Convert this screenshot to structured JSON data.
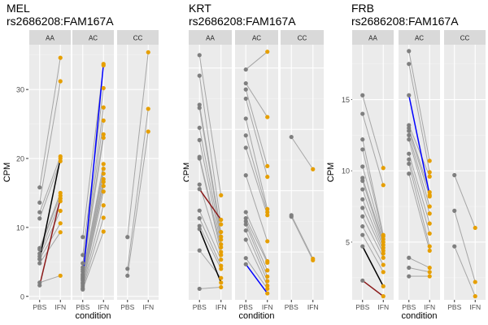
{
  "figure": {
    "xlabel": "condition",
    "ylabel": "CPM",
    "condition_labels": [
      "PBS",
      "IFN"
    ]
  },
  "colors": {
    "panel_bg": "#ebebeb",
    "strip_bg": "#d9d9d9",
    "grid_major": "#ffffff",
    "grid_minor": "#f4f4f4",
    "pbs_point": "#7f7f7f",
    "ifn_point": "#e69f00",
    "pair_line": "#a6a6a6",
    "highlight_black": "#000000",
    "highlight_red": "#8b1a1a",
    "highlight_blue": "#0000ff",
    "text": "#000000",
    "tick_text": "#4d4d4d"
  },
  "chart_data": [
    {
      "type": "scatter",
      "title": "MEL",
      "subtitle": "rs2686208:FAM167A",
      "xlabel": "condition",
      "ylabel": "CPM",
      "ylim": [
        -0.5,
        36.5
      ],
      "yticks": [
        0,
        10,
        20,
        30
      ],
      "facets": [
        {
          "genotype": "AA",
          "pairs": [
            [
              15.8,
              34.6
            ],
            [
              13.6,
              31.2
            ],
            [
              12.2,
              20.3
            ],
            [
              11.3,
              19.6
            ],
            [
              7.0,
              15.0
            ],
            [
              6.8,
              14.6
            ],
            [
              6.2,
              13.8
            ],
            [
              5.8,
              12.4
            ],
            [
              5.4,
              10.6
            ],
            [
              4.8,
              9.3
            ],
            [
              2.0,
              3.0
            ]
          ],
          "highlight": [
            {
              "color": "black",
              "pbs": 5.4,
              "ifn": 20.0
            },
            {
              "color": "red",
              "pbs": 1.6,
              "ifn": 14.2
            }
          ]
        },
        {
          "genotype": "AC",
          "pairs": [
            [
              8.6,
              33.5
            ],
            [
              6.0,
              30.2
            ],
            [
              4.8,
              27.4
            ],
            [
              4.2,
              25.5
            ],
            [
              3.9,
              23.5
            ],
            [
              3.6,
              23.0
            ],
            [
              3.2,
              19.2
            ],
            [
              3.0,
              18.5
            ],
            [
              2.8,
              17.8
            ],
            [
              2.6,
              17.0
            ],
            [
              2.3,
              16.6
            ],
            [
              2.0,
              16.0
            ],
            [
              1.8,
              15.2
            ],
            [
              1.5,
              13.2
            ],
            [
              1.2,
              11.4
            ],
            [
              1.0,
              9.4
            ]
          ],
          "highlight": [
            {
              "color": "blue",
              "pbs": 2.5,
              "ifn": 33.7
            }
          ]
        },
        {
          "genotype": "CC",
          "pairs": [
            [
              8.6,
              35.4
            ],
            [
              4.0,
              27.2
            ],
            [
              3.0,
              23.9
            ]
          ],
          "highlight": []
        }
      ]
    },
    {
      "type": "scatter",
      "title": "KRT",
      "subtitle": "rs2686208:FAM167A",
      "xlabel": "condition",
      "ylabel": "CPM",
      "ylim": [
        4.4,
        87.6
      ],
      "yticks": [
        20,
        40,
        60,
        80
      ],
      "facets": [
        {
          "genotype": "AA",
          "pairs": [
            [
              84.2,
              38.5
            ],
            [
              77.5,
              29.0
            ],
            [
              68.0,
              26.5
            ],
            [
              67.0,
              25.0
            ],
            [
              60.5,
              24.0
            ],
            [
              56.5,
              22.5
            ],
            [
              51.0,
              21.5
            ],
            [
              50.5,
              20.0
            ],
            [
              42.0,
              19.0
            ],
            [
              33.5,
              17.5
            ],
            [
              31.0,
              15.5
            ],
            [
              28.5,
              14.5
            ],
            [
              20.5,
              11.5
            ],
            [
              8.0,
              8.5
            ]
          ],
          "highlight": [
            {
              "color": "black",
              "pbs": 27.5,
              "ifn": 10.0
            },
            {
              "color": "red",
              "pbs": 40.5,
              "ifn": 30.5
            }
          ]
        },
        {
          "genotype": "AC",
          "pairs": [
            [
              79.5,
              85.3
            ],
            [
              75.0,
              64.0
            ],
            [
              73.0,
              48.0
            ],
            [
              70.0,
              44.5
            ],
            [
              63.5,
              34.0
            ],
            [
              58.0,
              33.0
            ],
            [
              54.0,
              32.0
            ],
            [
              45.0,
              23.5
            ],
            [
              33.0,
              17.0
            ],
            [
              31.0,
              16.5
            ],
            [
              30.0,
              14.0
            ],
            [
              29.0,
              12.0
            ],
            [
              27.0,
              10.5
            ],
            [
              24.0,
              9.0
            ],
            [
              18.0,
              8.0
            ]
          ],
          "highlight": [
            {
              "color": "blue",
              "pbs": 16.0,
              "ifn": 6.5
            }
          ]
        },
        {
          "genotype": "CC",
          "pairs": [
            [
              57.5,
              47.0
            ],
            [
              32.0,
              17.8
            ],
            [
              31.5,
              17.3
            ]
          ],
          "highlight": []
        }
      ]
    },
    {
      "type": "scatter",
      "title": "FRB",
      "subtitle": "rs2686208:FAM167A",
      "xlabel": "condition",
      "ylabel": "CPM",
      "ylim": [
        0.95,
        18.85
      ],
      "yticks": [
        5,
        10,
        15
      ],
      "facets": [
        {
          "genotype": "AA",
          "pairs": [
            [
              15.3,
              10.2
            ],
            [
              14.0,
              9.0
            ],
            [
              12.2,
              5.5
            ],
            [
              11.5,
              5.4
            ],
            [
              10.3,
              5.2
            ],
            [
              9.5,
              5.0
            ],
            [
              9.3,
              4.8
            ],
            [
              8.7,
              4.6
            ],
            [
              8.0,
              4.4
            ],
            [
              7.4,
              4.2
            ],
            [
              6.8,
              3.9
            ],
            [
              6.1,
              3.4
            ],
            [
              5.5,
              2.9
            ]
          ],
          "highlight": [
            {
              "color": "black",
              "pbs": 4.7,
              "ifn": 1.9
            },
            {
              "color": "red",
              "pbs": 2.3,
              "ifn": 1.2
            }
          ]
        },
        {
          "genotype": "AC",
          "pairs": [
            [
              18.4,
              10.7
            ],
            [
              17.5,
              9.9
            ],
            [
              13.2,
              9.6
            ],
            [
              13.0,
              8.5
            ],
            [
              12.8,
              8.2
            ],
            [
              12.5,
              7.5
            ],
            [
              12.2,
              7.0
            ],
            [
              11.2,
              6.3
            ],
            [
              10.8,
              5.6
            ],
            [
              10.5,
              4.7
            ],
            [
              9.8,
              4.4
            ],
            [
              3.9,
              3.2
            ],
            [
              3.2,
              2.9
            ],
            [
              2.6,
              2.6
            ]
          ],
          "highlight": [
            {
              "color": "blue",
              "pbs": 15.3,
              "ifn": 8.3
            }
          ]
        },
        {
          "genotype": "CC",
          "pairs": [
            [
              9.7,
              6.0
            ],
            [
              7.2,
              2.2
            ],
            [
              4.7,
              1.2
            ]
          ],
          "highlight": []
        }
      ]
    }
  ]
}
